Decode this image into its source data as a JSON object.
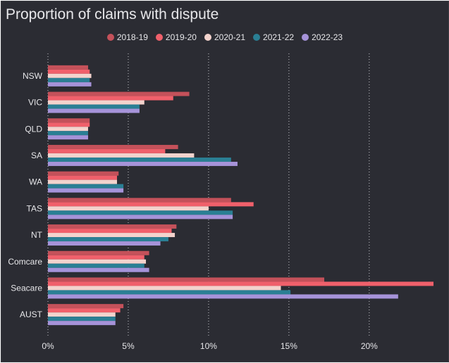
{
  "chart_data": {
    "type": "bar",
    "orientation": "horizontal",
    "title": "Proportion of claims with dispute",
    "categories": [
      "NSW",
      "VIC",
      "QLD",
      "SA",
      "WA",
      "TAS",
      "NT",
      "Comcare",
      "Seacare",
      "AUST"
    ],
    "series": [
      {
        "name": "2018-19",
        "color": "#c4515a",
        "values": [
          2.5,
          8.8,
          2.6,
          8.1,
          4.4,
          11.4,
          8.0,
          6.3,
          17.2,
          4.7
        ]
      },
      {
        "name": "2019-20",
        "color": "#f0606b",
        "values": [
          2.6,
          7.8,
          2.6,
          7.3,
          4.3,
          12.8,
          7.7,
          6.0,
          24.0,
          4.5
        ]
      },
      {
        "name": "2020-21",
        "color": "#f3d3cd",
        "values": [
          2.7,
          6.0,
          2.5,
          9.1,
          4.3,
          10.0,
          7.9,
          6.1,
          14.5,
          4.2
        ]
      },
      {
        "name": "2021-22",
        "color": "#2a7f94",
        "values": [
          2.6,
          5.7,
          2.5,
          11.4,
          4.7,
          11.5,
          7.5,
          6.0,
          15.1,
          4.2
        ]
      },
      {
        "name": "2022-23",
        "color": "#a693d9",
        "values": [
          2.7,
          5.7,
          2.5,
          11.8,
          4.7,
          11.5,
          7.0,
          6.3,
          21.8,
          4.2
        ]
      }
    ],
    "xticks": [
      0,
      5,
      10,
      15,
      20
    ],
    "xtick_labels": [
      "0%",
      "5%",
      "10%",
      "15%",
      "20%"
    ],
    "xlim": [
      0,
      24
    ],
    "grid": true,
    "legend_position": "top-center"
  }
}
